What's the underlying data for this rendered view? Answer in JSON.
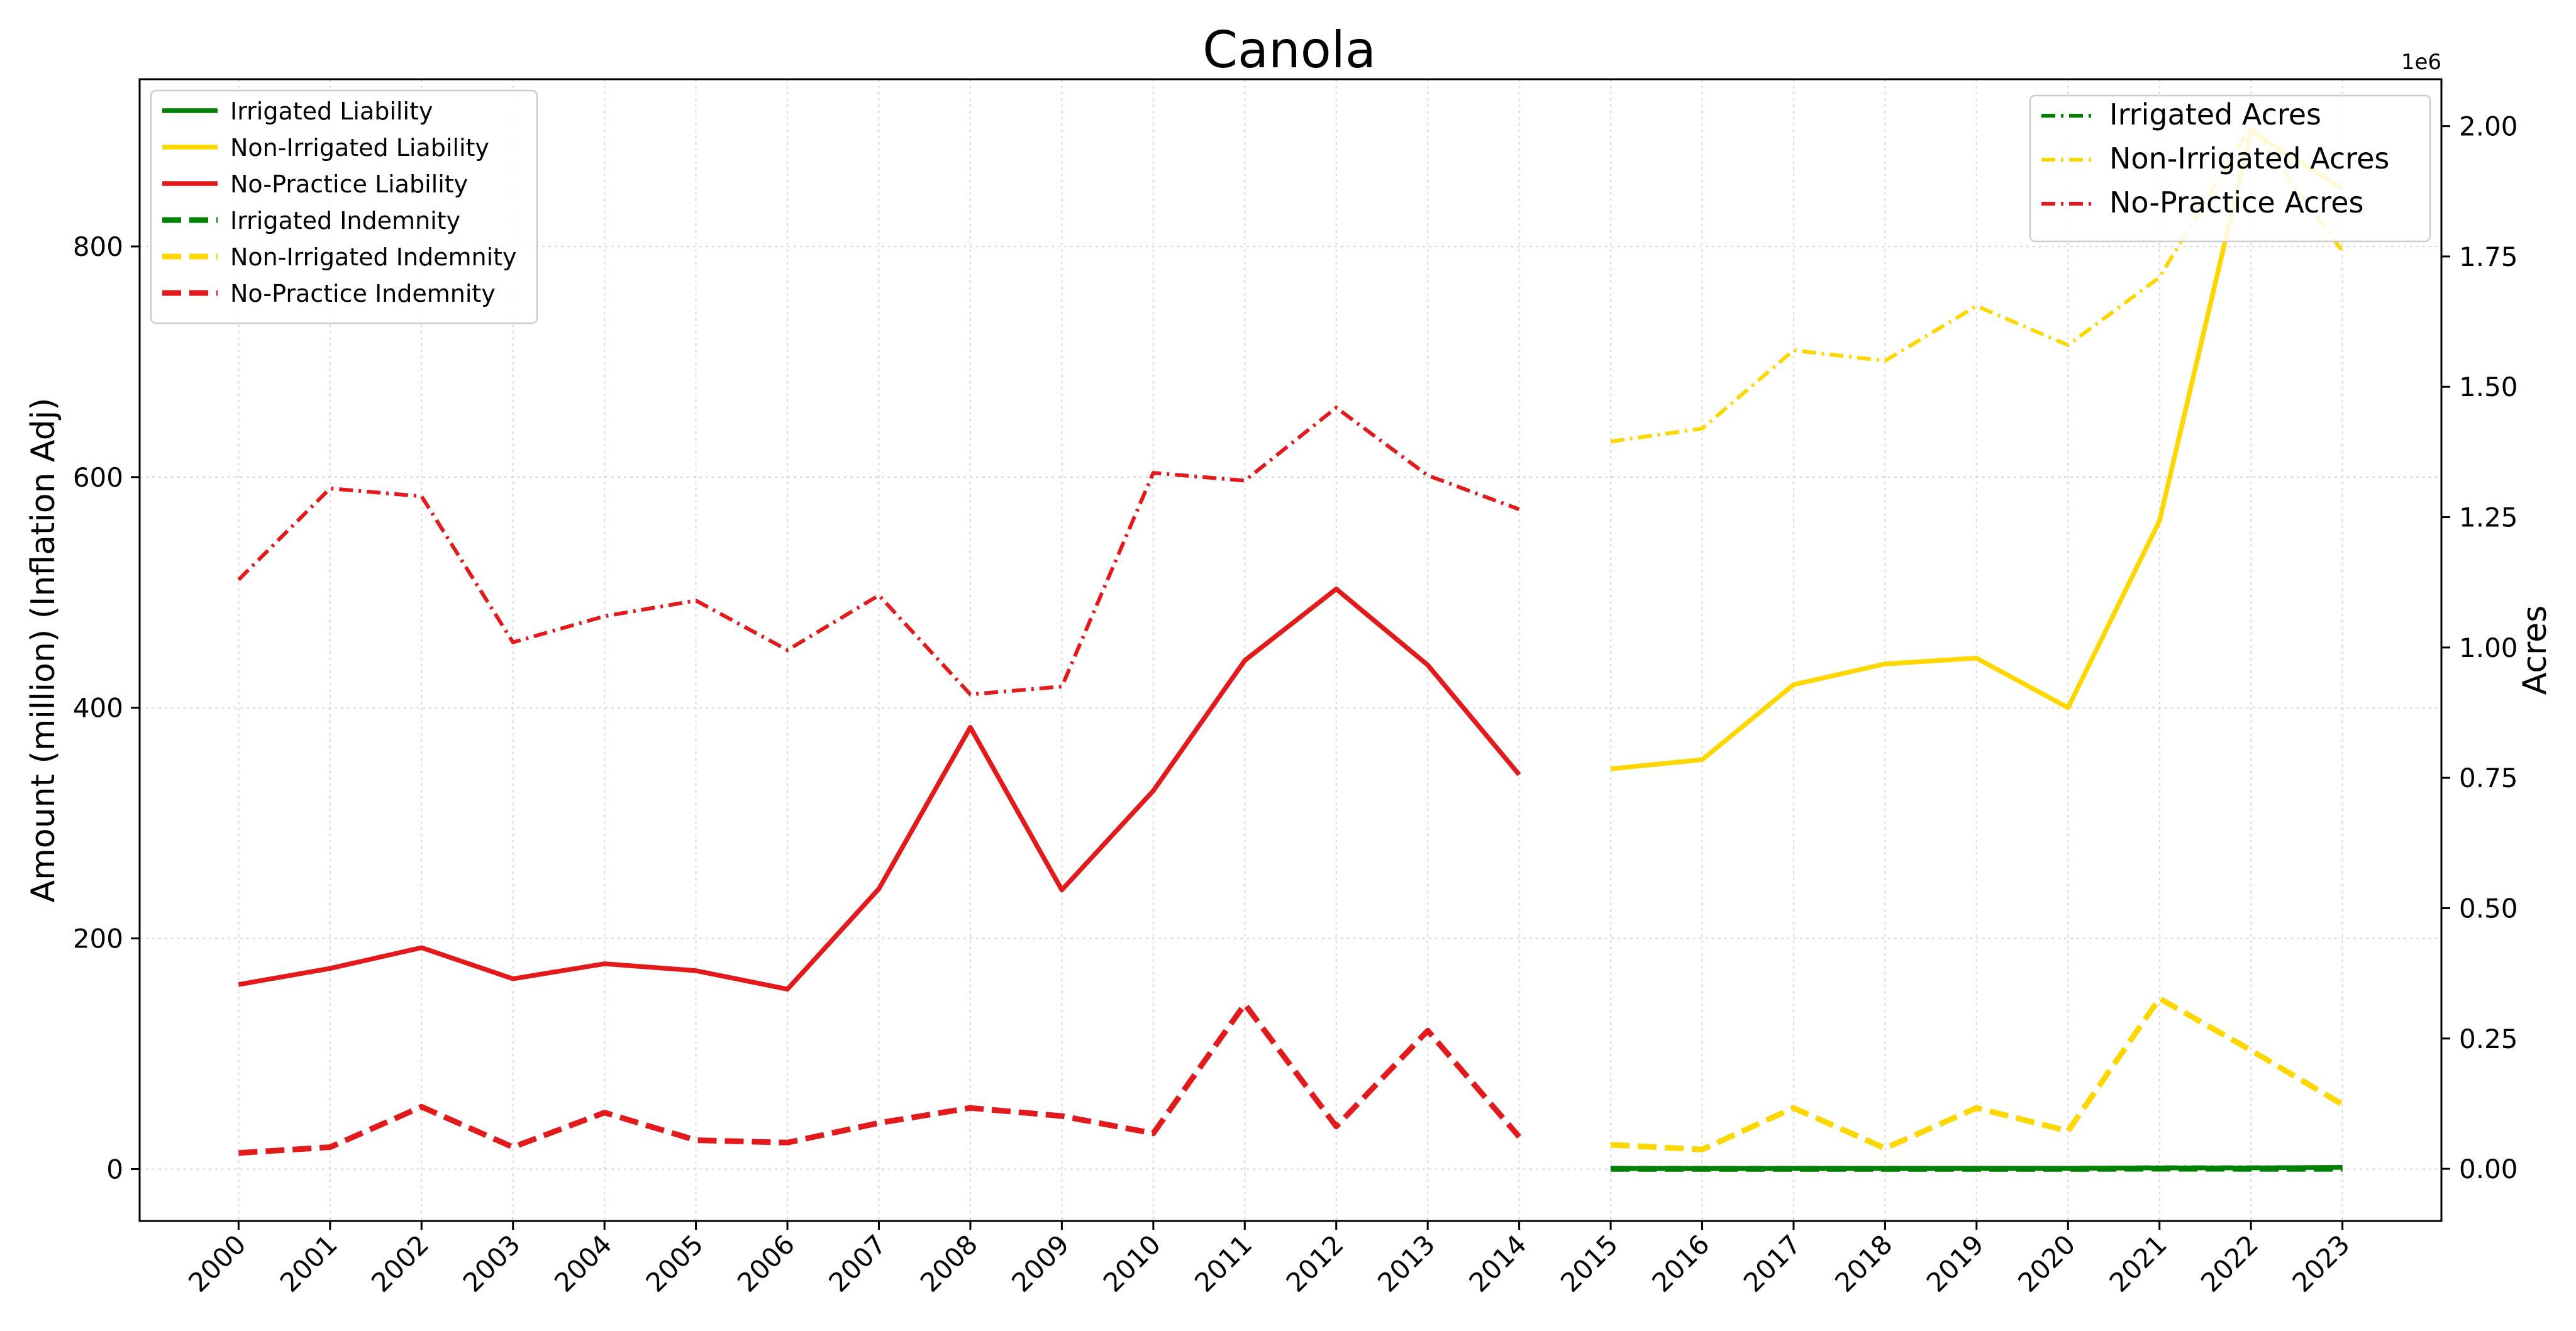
{
  "chart_data": {
    "type": "line",
    "title": "Canola",
    "ylabel": "Amount (million) (Inflation Adj)",
    "y2label": "Acres",
    "y2_offset_label": "1e6",
    "x": [
      "2000",
      "2001",
      "2002",
      "2003",
      "2004",
      "2005",
      "2006",
      "2007",
      "2008",
      "2009",
      "2010",
      "2011",
      "2012",
      "2013",
      "2014",
      "2015",
      "2016",
      "2017",
      "2018",
      "2019",
      "2020",
      "2021",
      "2022",
      "2023"
    ],
    "ylim": [
      -45,
      945
    ],
    "yticks": [
      0,
      200,
      400,
      600,
      800
    ],
    "y2lim": [
      -0.1,
      2.09
    ],
    "y2ticks": [
      0.0,
      0.25,
      0.5,
      0.75,
      1.0,
      1.25,
      1.5,
      1.75,
      2.0
    ],
    "y2tick_labels": [
      "0.00",
      "0.25",
      "0.50",
      "0.75",
      "1.00",
      "1.25",
      "1.50",
      "1.75",
      "2.00"
    ],
    "grid": true,
    "legend_left": "top-left",
    "legend_right": "top-right",
    "series": [
      {
        "name": "Irrigated Liability",
        "axis": "left",
        "color": "#008000",
        "style": "solid",
        "values": [
          null,
          null,
          null,
          null,
          null,
          null,
          null,
          null,
          null,
          null,
          null,
          null,
          null,
          null,
          null,
          0.5,
          0.5,
          0.6,
          0.6,
          0.7,
          0.7,
          1.0,
          1.0,
          1.5
        ]
      },
      {
        "name": "Non-Irrigated Liability",
        "axis": "left",
        "color": "#FFD700",
        "style": "solid",
        "values": [
          null,
          null,
          null,
          null,
          null,
          null,
          null,
          null,
          null,
          null,
          null,
          null,
          null,
          null,
          null,
          347,
          355,
          420,
          438,
          443,
          400,
          562,
          900,
          850
        ]
      },
      {
        "name": "No-Practice Liability",
        "axis": "left",
        "color": "#E31A1C",
        "style": "solid",
        "values": [
          160,
          174,
          192,
          165,
          178,
          172,
          156,
          243,
          383,
          242,
          328,
          441,
          503,
          437,
          342,
          null,
          null,
          null,
          null,
          null,
          null,
          null,
          null,
          null
        ]
      },
      {
        "name": "Irrigated Indemnity",
        "axis": "left",
        "color": "#008000",
        "style": "dashed",
        "values": [
          null,
          null,
          null,
          null,
          null,
          null,
          null,
          null,
          null,
          null,
          null,
          null,
          null,
          null,
          null,
          0.1,
          0.1,
          0.1,
          0.1,
          0.1,
          0.1,
          0.3,
          0.2,
          0.2
        ]
      },
      {
        "name": "Non-Irrigated Indemnity",
        "axis": "left",
        "color": "#FFD700",
        "style": "dashed",
        "values": [
          null,
          null,
          null,
          null,
          null,
          null,
          null,
          null,
          null,
          null,
          null,
          null,
          null,
          null,
          null,
          21,
          17,
          53,
          18,
          53,
          33,
          148,
          103,
          56
        ]
      },
      {
        "name": "No-Practice Indemnity",
        "axis": "left",
        "color": "#E31A1C",
        "style": "dashed",
        "values": [
          14,
          19,
          54,
          19,
          49,
          25,
          23,
          40,
          53,
          46,
          31,
          143,
          37,
          120,
          28,
          null,
          null,
          null,
          null,
          null,
          null,
          null,
          null,
          null
        ]
      },
      {
        "name": "Irrigated Acres",
        "axis": "right",
        "color": "#008000",
        "style": "dashdot",
        "values": [
          null,
          null,
          null,
          null,
          null,
          null,
          null,
          null,
          null,
          null,
          null,
          null,
          null,
          null,
          null,
          0.002,
          0.002,
          0.002,
          0.002,
          0.002,
          0.002,
          0.003,
          0.003,
          0.003
        ]
      },
      {
        "name": "Non-Irrigated Acres",
        "axis": "right",
        "color": "#FFD700",
        "style": "dashdot",
        "values": [
          null,
          null,
          null,
          null,
          null,
          null,
          null,
          null,
          null,
          null,
          null,
          null,
          null,
          null,
          null,
          1.395,
          1.42,
          1.57,
          1.55,
          1.655,
          1.58,
          1.71,
          2.0,
          1.76
        ]
      },
      {
        "name": "No-Practice Acres",
        "axis": "right",
        "color": "#E31A1C",
        "style": "dashdot",
        "values": [
          1.13,
          1.305,
          1.29,
          1.01,
          1.06,
          1.09,
          0.995,
          1.1,
          0.91,
          0.925,
          1.335,
          1.32,
          1.46,
          1.33,
          1.265,
          null,
          null,
          null,
          null,
          null,
          null,
          null,
          null,
          null
        ]
      }
    ]
  }
}
